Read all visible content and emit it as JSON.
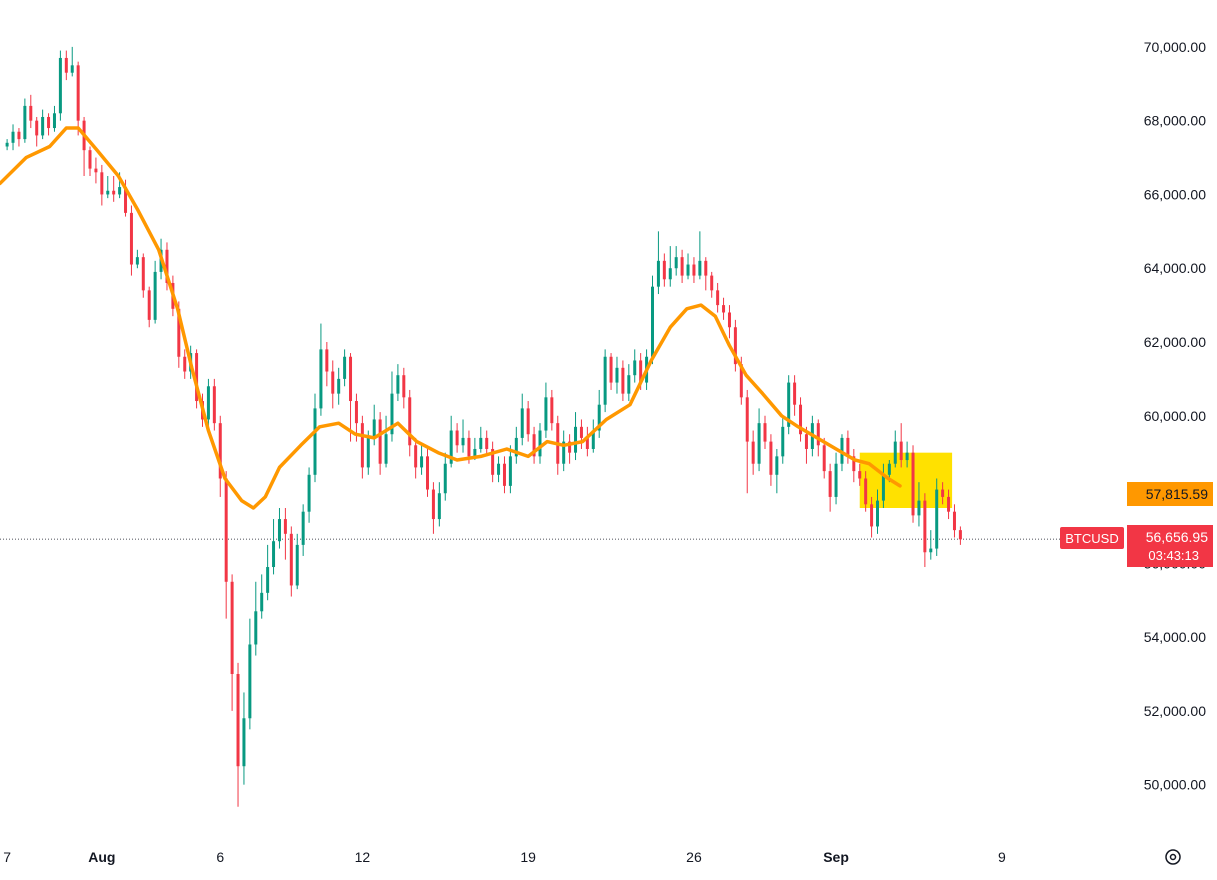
{
  "chart_data": {
    "type": "candlestick",
    "symbol": "BTCUSD",
    "y_ticks": [
      "70,000.00",
      "68,000.00",
      "66,000.00",
      "64,000.00",
      "62,000.00",
      "60,000.00",
      "58,000.00",
      "56,000.00",
      "54,000.00",
      "52,000.00",
      "50,000.00"
    ],
    "y_tick_values": [
      70000,
      68000,
      66000,
      64000,
      62000,
      60000,
      58000,
      56000,
      54000,
      52000,
      50000
    ],
    "x_ticks": [
      {
        "label": "7",
        "day": -3,
        "bold": false
      },
      {
        "label": "Aug",
        "day": 1,
        "bold": true
      },
      {
        "label": "6",
        "day": 6,
        "bold": false
      },
      {
        "label": "12",
        "day": 12,
        "bold": false
      },
      {
        "label": "19",
        "day": 19,
        "bold": false
      },
      {
        "label": "26",
        "day": 26,
        "bold": false
      },
      {
        "label": "Sep",
        "day": 32,
        "bold": true
      },
      {
        "label": "9",
        "day": 39,
        "bold": false
      }
    ],
    "ylim": [
      48500,
      71000
    ],
    "xlim_days": [
      -3.3,
      44.2
    ],
    "colors": {
      "up": "#089981",
      "down": "#f23645",
      "ma": "#ff9800",
      "highlight": "#ffe100",
      "last_price": "#f23645"
    },
    "moving_average": {
      "value_label": "57,815.59",
      "points": [
        [
          -3.3,
          66300
        ],
        [
          -2.2,
          67000
        ],
        [
          -1.2,
          67300
        ],
        [
          -0.5,
          67800
        ],
        [
          0,
          67800
        ],
        [
          0.8,
          67200
        ],
        [
          1.7,
          66500
        ],
        [
          2.5,
          65600
        ],
        [
          3.4,
          64500
        ],
        [
          4.2,
          62900
        ],
        [
          4.8,
          61300
        ],
        [
          5.5,
          59600
        ],
        [
          6.2,
          58300
        ],
        [
          6.9,
          57700
        ],
        [
          7.4,
          57500
        ],
        [
          7.9,
          57800
        ],
        [
          8.5,
          58600
        ],
        [
          9.4,
          59200
        ],
        [
          10.2,
          59700
        ],
        [
          11.0,
          59800
        ],
        [
          11.7,
          59500
        ],
        [
          12.5,
          59400
        ],
        [
          13.5,
          59800
        ],
        [
          14.3,
          59300
        ],
        [
          15.2,
          59000
        ],
        [
          16.0,
          58800
        ],
        [
          17.0,
          58900
        ],
        [
          18.1,
          59100
        ],
        [
          19.0,
          58900
        ],
        [
          19.8,
          59300
        ],
        [
          20.5,
          59200
        ],
        [
          21.3,
          59300
        ],
        [
          22.3,
          59900
        ],
        [
          23.3,
          60300
        ],
        [
          24.2,
          61500
        ],
        [
          25.0,
          62400
        ],
        [
          25.7,
          62900
        ],
        [
          26.3,
          63000
        ],
        [
          26.9,
          62700
        ],
        [
          27.5,
          61900
        ],
        [
          28.2,
          61100
        ],
        [
          28.9,
          60600
        ],
        [
          29.7,
          60000
        ],
        [
          30.4,
          59700
        ],
        [
          31.2,
          59400
        ],
        [
          32.0,
          59100
        ],
        [
          32.8,
          58800
        ],
        [
          33.4,
          58700
        ],
        [
          34.2,
          58300
        ],
        [
          34.7,
          58100
        ]
      ]
    },
    "highlight_zone": {
      "day_start": 33.0,
      "day_end": 36.9,
      "low": 57500,
      "high": 59000
    },
    "last_price": {
      "value": 56656.95,
      "label": "56,656.95",
      "timer": "03:43:13"
    },
    "candles": [
      [
        -3.0,
        67300,
        67400,
        67500,
        67200
      ],
      [
        -2.75,
        67400,
        67700,
        67900,
        67200
      ],
      [
        -2.5,
        67700,
        67500,
        67800,
        67300
      ],
      [
        -2.25,
        67500,
        68400,
        68600,
        67400
      ],
      [
        -2.0,
        68400,
        68000,
        68700,
        67800
      ],
      [
        -1.75,
        68000,
        67600,
        68100,
        67300
      ],
      [
        -1.5,
        67600,
        68100,
        68300,
        67500
      ],
      [
        -1.25,
        68100,
        67800,
        68200,
        67600
      ],
      [
        -1.0,
        67800,
        68200,
        68400,
        67700
      ],
      [
        -0.75,
        68200,
        69700,
        69900,
        68000
      ],
      [
        -0.5,
        69700,
        69300,
        69900,
        69100
      ],
      [
        -0.25,
        69300,
        69500,
        70000,
        69200
      ],
      [
        0.0,
        69500,
        68000,
        69600,
        67600
      ],
      [
        0.25,
        68000,
        67200,
        68100,
        66500
      ],
      [
        0.5,
        67200,
        66700,
        67300,
        66500
      ],
      [
        0.75,
        66700,
        66600,
        67000,
        66300
      ],
      [
        1.0,
        66600,
        66000,
        66800,
        65700
      ],
      [
        1.25,
        66000,
        66100,
        66500,
        65900
      ],
      [
        1.5,
        66100,
        66000,
        66500,
        65800
      ],
      [
        1.75,
        66000,
        66200,
        66600,
        65900
      ],
      [
        2.0,
        66200,
        65500,
        66400,
        65400
      ],
      [
        2.25,
        65500,
        64100,
        65700,
        63800
      ],
      [
        2.5,
        64100,
        64300,
        64500,
        64000
      ],
      [
        2.75,
        64300,
        63400,
        64400,
        63200
      ],
      [
        3.0,
        63400,
        62600,
        63500,
        62400
      ],
      [
        3.25,
        62600,
        63900,
        64200,
        62500
      ],
      [
        3.5,
        63900,
        64500,
        64800,
        63700
      ],
      [
        3.75,
        64500,
        63600,
        64700,
        63400
      ],
      [
        4.0,
        63600,
        62900,
        63800,
        62700
      ],
      [
        4.25,
        62900,
        61600,
        63100,
        61300
      ],
      [
        4.5,
        61600,
        61200,
        61800,
        61000
      ],
      [
        4.75,
        61200,
        61700,
        61900,
        61000
      ],
      [
        5.0,
        61700,
        60400,
        61800,
        60200
      ],
      [
        5.25,
        60400,
        59900,
        60600,
        59700
      ],
      [
        5.5,
        59900,
        60800,
        61000,
        59700
      ],
      [
        5.75,
        60800,
        59800,
        61000,
        59600
      ],
      [
        6.0,
        59800,
        58300,
        60000,
        57800
      ],
      [
        6.25,
        58300,
        55500,
        58500,
        54500
      ],
      [
        6.5,
        55500,
        53000,
        55700,
        52000
      ],
      [
        6.75,
        53000,
        50500,
        53300,
        49400
      ],
      [
        7.0,
        50500,
        51800,
        52500,
        50000
      ],
      [
        7.25,
        51800,
        53800,
        54500,
        51500
      ],
      [
        7.5,
        53800,
        54700,
        55500,
        53500
      ],
      [
        7.75,
        54700,
        55200,
        55700,
        54500
      ],
      [
        8.0,
        55200,
        55900,
        56500,
        55000
      ],
      [
        8.25,
        55900,
        56600,
        57200,
        55700
      ],
      [
        8.5,
        56600,
        57200,
        57500,
        56400
      ],
      [
        8.75,
        57200,
        56800,
        57500,
        56100
      ],
      [
        9.0,
        56800,
        55400,
        57000,
        55100
      ],
      [
        9.25,
        55400,
        56500,
        56800,
        55300
      ],
      [
        9.5,
        56500,
        57400,
        57600,
        56200
      ],
      [
        9.75,
        57400,
        58400,
        58600,
        57100
      ],
      [
        10.0,
        58400,
        60200,
        60600,
        58200
      ],
      [
        10.25,
        60200,
        61800,
        62500,
        60000
      ],
      [
        10.5,
        61800,
        61200,
        62000,
        60800
      ],
      [
        10.75,
        61200,
        60600,
        61500,
        60200
      ],
      [
        11.0,
        60600,
        61000,
        61300,
        60300
      ],
      [
        11.25,
        61000,
        61600,
        61800,
        60800
      ],
      [
        11.5,
        61600,
        60400,
        61700,
        59300
      ],
      [
        11.75,
        60400,
        59800,
        60600,
        59300
      ],
      [
        12.0,
        59800,
        58600,
        60000,
        58300
      ],
      [
        12.25,
        58600,
        59400,
        59600,
        58400
      ],
      [
        12.5,
        59400,
        59900,
        60300,
        59200
      ],
      [
        12.75,
        59900,
        58700,
        60100,
        58400
      ],
      [
        13.0,
        58700,
        59500,
        60000,
        58600
      ],
      [
        13.25,
        59500,
        60600,
        61200,
        59300
      ],
      [
        13.5,
        60600,
        61100,
        61400,
        60400
      ],
      [
        13.75,
        61100,
        60500,
        61300,
        60200
      ],
      [
        14.0,
        60500,
        59200,
        60700,
        58900
      ],
      [
        14.25,
        59200,
        58600,
        59400,
        58300
      ],
      [
        14.5,
        58600,
        58900,
        59200,
        58400
      ],
      [
        14.75,
        58900,
        58000,
        59100,
        57800
      ],
      [
        15.0,
        58000,
        57200,
        58200,
        56800
      ],
      [
        15.25,
        57200,
        57900,
        58200,
        57000
      ],
      [
        15.5,
        57900,
        58700,
        59000,
        57700
      ],
      [
        15.75,
        58700,
        59600,
        60000,
        58600
      ],
      [
        16.0,
        59600,
        59200,
        59800,
        59000
      ],
      [
        16.25,
        59200,
        59400,
        59900,
        59000
      ],
      [
        16.5,
        59400,
        58900,
        59600,
        58700
      ],
      [
        16.75,
        58900,
        59100,
        59400,
        58800
      ],
      [
        17.0,
        59100,
        59400,
        59700,
        59000
      ],
      [
        17.25,
        59400,
        59100,
        59600,
        58900
      ],
      [
        17.5,
        59100,
        58400,
        59300,
        58200
      ],
      [
        17.75,
        58400,
        58700,
        58900,
        58200
      ],
      [
        18.0,
        58700,
        58100,
        58900,
        57900
      ],
      [
        18.25,
        58100,
        58900,
        59200,
        57900
      ],
      [
        18.5,
        58900,
        59400,
        59700,
        58700
      ],
      [
        18.75,
        59400,
        60200,
        60600,
        59200
      ],
      [
        19.0,
        60200,
        59500,
        60400,
        59300
      ],
      [
        19.25,
        59500,
        58900,
        59700,
        58700
      ],
      [
        19.5,
        58900,
        59600,
        59800,
        58700
      ],
      [
        19.75,
        59600,
        60500,
        60900,
        59400
      ],
      [
        20.0,
        60500,
        59800,
        60700,
        59600
      ],
      [
        20.25,
        59800,
        58700,
        60000,
        58400
      ],
      [
        20.5,
        58700,
        59300,
        59600,
        58500
      ],
      [
        20.75,
        59300,
        59000,
        59500,
        58700
      ],
      [
        21.0,
        59000,
        59700,
        60100,
        58800
      ],
      [
        21.25,
        59700,
        59400,
        59900,
        59100
      ],
      [
        21.5,
        59400,
        59100,
        59700,
        58900
      ],
      [
        21.75,
        59100,
        59600,
        59900,
        59000
      ],
      [
        22.0,
        59600,
        60300,
        60700,
        59400
      ],
      [
        22.25,
        60300,
        61600,
        61800,
        60100
      ],
      [
        22.5,
        61600,
        60900,
        61700,
        60700
      ],
      [
        22.75,
        60900,
        61300,
        61600,
        60600
      ],
      [
        23.0,
        61300,
        60600,
        61500,
        60400
      ],
      [
        23.25,
        60600,
        61100,
        61400,
        60400
      ],
      [
        23.5,
        61100,
        61500,
        61800,
        60900
      ],
      [
        23.75,
        61500,
        60900,
        61700,
        60700
      ],
      [
        24.0,
        60900,
        61600,
        61800,
        60700
      ],
      [
        24.25,
        61600,
        63500,
        63800,
        61400
      ],
      [
        24.5,
        63500,
        64200,
        65000,
        63300
      ],
      [
        24.75,
        64200,
        63700,
        64400,
        63500
      ],
      [
        25.0,
        63700,
        64000,
        64600,
        63500
      ],
      [
        25.25,
        64000,
        64300,
        64600,
        63800
      ],
      [
        25.5,
        64300,
        63800,
        64500,
        63600
      ],
      [
        25.75,
        63800,
        64100,
        64400,
        63700
      ],
      [
        26.0,
        64100,
        63800,
        64300,
        63600
      ],
      [
        26.25,
        63800,
        64200,
        65000,
        63700
      ],
      [
        26.5,
        64200,
        63800,
        64300,
        63400
      ],
      [
        26.75,
        63800,
        63400,
        63900,
        63200
      ],
      [
        27.0,
        63400,
        63000,
        63600,
        62800
      ],
      [
        27.25,
        63000,
        62800,
        63200,
        62600
      ],
      [
        27.5,
        62800,
        62400,
        63000,
        62100
      ],
      [
        27.75,
        62400,
        61400,
        62600,
        61200
      ],
      [
        28.0,
        61400,
        60500,
        61600,
        60300
      ],
      [
        28.25,
        60500,
        59300,
        60700,
        57900
      ],
      [
        28.5,
        59300,
        58700,
        59600,
        58400
      ],
      [
        28.75,
        58700,
        59800,
        60200,
        58500
      ],
      [
        29.0,
        59800,
        59300,
        60000,
        59100
      ],
      [
        29.25,
        59300,
        58400,
        59500,
        58100
      ],
      [
        29.5,
        58400,
        58900,
        59100,
        57900
      ],
      [
        29.75,
        58900,
        59700,
        60000,
        58700
      ],
      [
        30.0,
        59700,
        60900,
        61100,
        59500
      ],
      [
        30.25,
        60900,
        60300,
        61100,
        60000
      ],
      [
        30.5,
        60300,
        59500,
        60500,
        59300
      ],
      [
        30.75,
        59500,
        59100,
        59700,
        58700
      ],
      [
        31.0,
        59100,
        59800,
        60000,
        58900
      ],
      [
        31.25,
        59800,
        59200,
        59900,
        58900
      ],
      [
        31.5,
        59200,
        58500,
        59400,
        58300
      ],
      [
        31.75,
        58500,
        57800,
        58700,
        57400
      ],
      [
        32.0,
        57800,
        58700,
        59000,
        57600
      ],
      [
        32.25,
        58700,
        59400,
        59500,
        58500
      ],
      [
        32.5,
        59400,
        58900,
        59600,
        58700
      ],
      [
        32.75,
        58900,
        58500,
        59100,
        58200
      ],
      [
        33.0,
        58500,
        58300,
        58700,
        58100
      ],
      [
        33.25,
        58300,
        57600,
        58500,
        57400
      ],
      [
        33.5,
        57600,
        57000,
        57800,
        56700
      ],
      [
        33.75,
        57000,
        57700,
        58000,
        56800
      ],
      [
        34.0,
        57700,
        58400,
        58700,
        57500
      ],
      [
        34.25,
        58400,
        58700,
        58800,
        58200
      ],
      [
        34.5,
        58700,
        59300,
        59600,
        58600
      ],
      [
        34.75,
        59300,
        58800,
        59800,
        58600
      ],
      [
        35.0,
        58800,
        59000,
        59300,
        58600
      ],
      [
        35.25,
        59000,
        57300,
        59200,
        57100
      ],
      [
        35.5,
        57300,
        57700,
        58200,
        57000
      ],
      [
        35.75,
        57700,
        56300,
        57900,
        55900
      ],
      [
        36.0,
        56300,
        56400,
        56900,
        56100
      ],
      [
        36.25,
        56400,
        58000,
        58300,
        56200
      ],
      [
        36.5,
        58000,
        57800,
        58200,
        57600
      ],
      [
        36.75,
        57800,
        57400,
        58000,
        57200
      ],
      [
        37.0,
        57400,
        56900,
        57600,
        56700
      ],
      [
        37.25,
        56900,
        56650,
        57000,
        56500
      ]
    ]
  }
}
